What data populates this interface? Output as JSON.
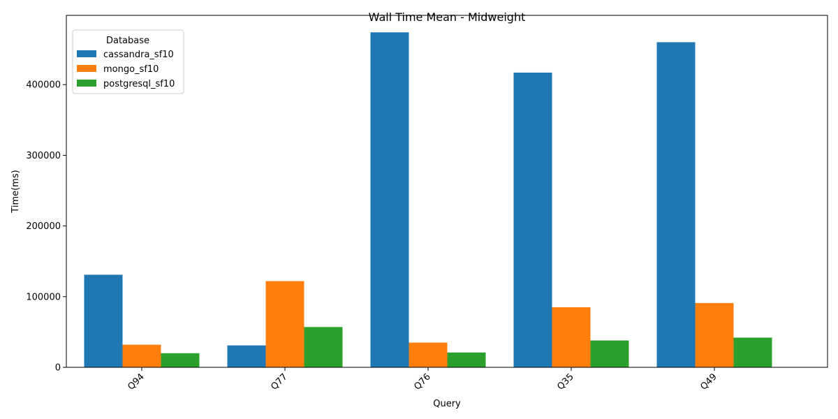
{
  "chart_data": {
    "type": "bar",
    "title": "Wall Time Mean - Midweight",
    "xlabel": "Query",
    "ylabel": "Time(ms)",
    "categories": [
      "Q94",
      "Q77",
      "Q76",
      "Q35",
      "Q49"
    ],
    "series": [
      {
        "name": "cassandra_sf10",
        "color": "#1f77b4",
        "values": [
          131000,
          31000,
          474000,
          417000,
          460000
        ]
      },
      {
        "name": "mongo_sf10",
        "color": "#ff7f0e",
        "values": [
          32000,
          122000,
          35000,
          85000,
          91000
        ]
      },
      {
        "name": "postgresql_sf10",
        "color": "#2ca02c",
        "values": [
          20000,
          57000,
          21000,
          38000,
          42000
        ]
      }
    ],
    "ylim": [
      0,
      498000
    ],
    "yticks": [
      0,
      100000,
      200000,
      300000,
      400000
    ],
    "legend": {
      "title": "Database",
      "position": "top-left"
    },
    "grid": false
  }
}
